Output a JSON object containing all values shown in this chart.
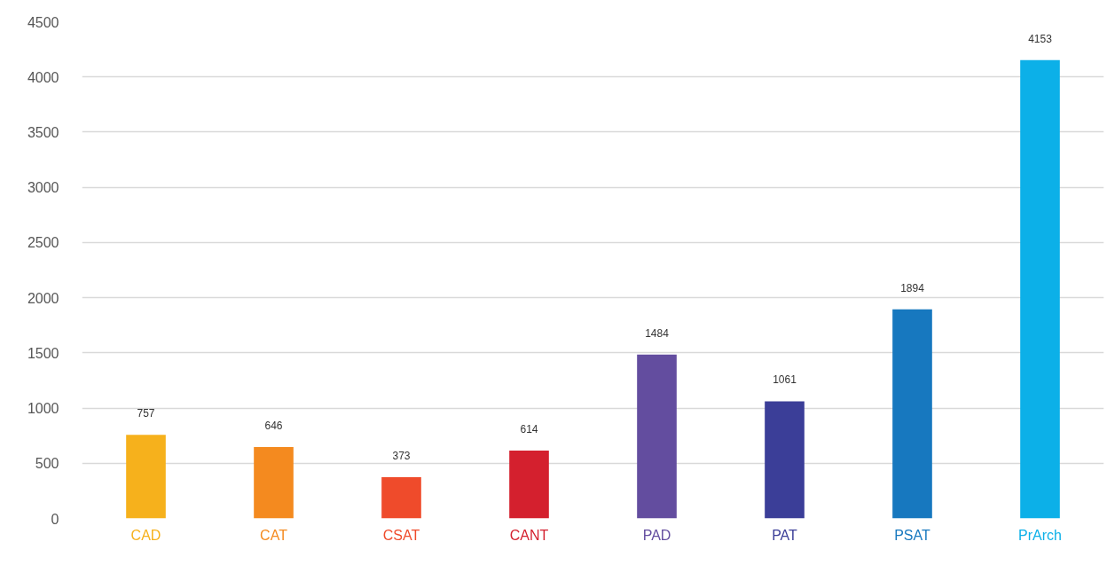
{
  "chart_data": {
    "type": "bar",
    "categories": [
      "CAD",
      "CAT",
      "CSAT",
      "CANT",
      "PAD",
      "PAT",
      "PSAT",
      "PrArch"
    ],
    "values": [
      757,
      646,
      373,
      614,
      1484,
      1061,
      1894,
      4153
    ],
    "colors": [
      "#f6b11c",
      "#f48a1f",
      "#ef4b2b",
      "#d4202e",
      "#634d9f",
      "#3b3e98",
      "#1778bf",
      "#0cb0e8"
    ],
    "ylim": [
      0,
      4500
    ],
    "yticks": [
      0,
      500,
      1000,
      1500,
      2000,
      2500,
      3000,
      3500,
      4000,
      4500
    ],
    "grid": "y",
    "data_labels": true
  }
}
